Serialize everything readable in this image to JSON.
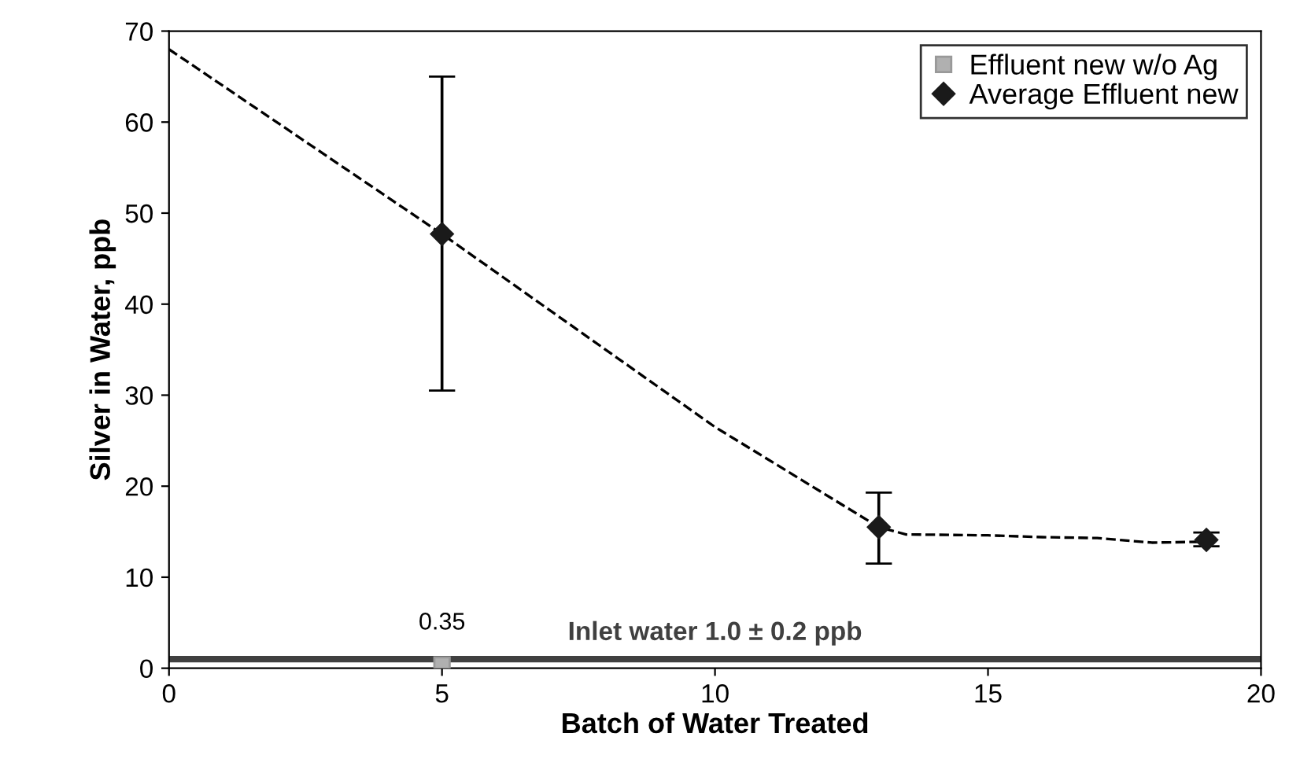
{
  "chart_data": {
    "type": "scatter",
    "xlabel": "Batch of Water Treated",
    "ylabel": "Silver in Water, ppb",
    "xlim": [
      0,
      20
    ],
    "xticks": [
      0,
      5,
      10,
      15,
      20
    ],
    "ylim": [
      0,
      70
    ],
    "yticks": [
      0,
      10,
      20,
      30,
      40,
      50,
      60,
      70
    ],
    "grid": false,
    "legend": "top right",
    "series": [
      {
        "name": "Effluent new w/o Ag",
        "marker": "square",
        "color": "#b0b0b0",
        "x": [
          5
        ],
        "values": [
          0.35
        ],
        "value_labels": [
          "0.35"
        ]
      },
      {
        "name": "Average Effluent new",
        "marker": "diamond",
        "color": "#1a1a1a",
        "x": [
          5,
          13,
          19
        ],
        "values": [
          47.7,
          15.5,
          14.1
        ],
        "errors": [
          [
            30.5,
            65
          ],
          [
            11.5,
            19.3
          ],
          [
            13.4,
            14.9
          ]
        ]
      },
      {
        "type": "line",
        "marker": "none",
        "line_style": "dashed",
        "color": "#000000",
        "x": [
          0,
          5,
          10,
          13,
          13.5,
          15,
          16,
          17,
          18,
          19
        ],
        "values": [
          68,
          47.7,
          26.5,
          15.5,
          14.7,
          14.6,
          14.4,
          14.3,
          13.8,
          13.9
        ]
      }
    ],
    "ref_lines": [
      {
        "axis": "y",
        "value": 1.0,
        "label": "Inlet water 1.0 ± 0.2 ppb",
        "color": "#404040"
      }
    ]
  }
}
